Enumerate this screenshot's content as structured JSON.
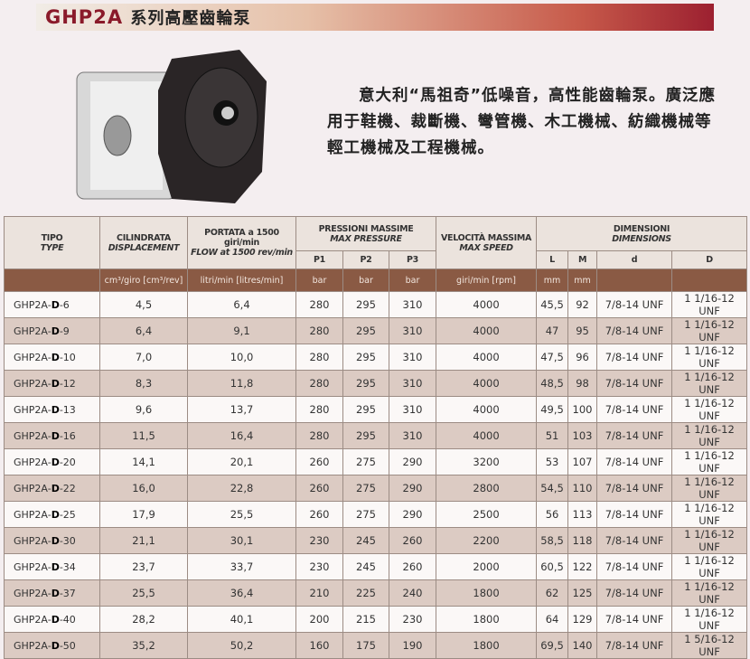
{
  "header": {
    "model": "GHP2A",
    "title_cn": "系列高壓齒輪泵"
  },
  "description": "意大利“馬祖奇”低噪音，高性能齒輪泵。廣泛應用于鞋機、裁斷機、彎管機、木工機械、紡織機械等輕工機械及工程機械。",
  "table": {
    "headers": {
      "type": [
        "TIPO",
        "TYPE"
      ],
      "displacement": [
        "CILINDRATA",
        "DISPLACEMENT"
      ],
      "flow": [
        "PORTATA a 1500 giri/min",
        "FLOW at 1500 rev/min"
      ],
      "pressure": [
        "PRESSIONI MASSIME",
        "MAX PRESSURE"
      ],
      "p": [
        "P1",
        "P2",
        "P3"
      ],
      "speed": [
        "VELOCITÀ MASSIMA",
        "MAX SPEED"
      ],
      "dimensions": [
        "DIMENSIONI",
        "DIMENSIONS"
      ],
      "dim_cols": [
        "L",
        "M",
        "d",
        "D"
      ]
    },
    "units": [
      "",
      "cm³/giro [cm³/rev]",
      "litri/min [litres/min]",
      "bar",
      "bar",
      "bar",
      "giri/min [rpm]",
      "mm",
      "mm",
      "",
      ""
    ],
    "rows": [
      {
        "prefix": "GHP2A-",
        "mid": "D",
        "suffix": "-6",
        "c": [
          "4,5",
          "6,4",
          "280",
          "295",
          "310",
          "4000",
          "45,5",
          "92",
          "7/8-14 UNF",
          "1 1/16-12 UNF"
        ]
      },
      {
        "prefix": "GHP2A-",
        "mid": "D",
        "suffix": "-9",
        "c": [
          "6,4",
          "9,1",
          "280",
          "295",
          "310",
          "4000",
          "47",
          "95",
          "7/8-14 UNF",
          "1 1/16-12 UNF"
        ]
      },
      {
        "prefix": "GHP2A-",
        "mid": "D",
        "suffix": "-10",
        "c": [
          "7,0",
          "10,0",
          "280",
          "295",
          "310",
          "4000",
          "47,5",
          "96",
          "7/8-14 UNF",
          "1 1/16-12 UNF"
        ]
      },
      {
        "prefix": "GHP2A-",
        "mid": "D",
        "suffix": "-12",
        "c": [
          "8,3",
          "11,8",
          "280",
          "295",
          "310",
          "4000",
          "48,5",
          "98",
          "7/8-14 UNF",
          "1 1/16-12 UNF"
        ]
      },
      {
        "prefix": "GHP2A-",
        "mid": "D",
        "suffix": "-13",
        "c": [
          "9,6",
          "13,7",
          "280",
          "295",
          "310",
          "4000",
          "49,5",
          "100",
          "7/8-14 UNF",
          "1 1/16-12 UNF"
        ]
      },
      {
        "prefix": "GHP2A-",
        "mid": "D",
        "suffix": "-16",
        "c": [
          "11,5",
          "16,4",
          "280",
          "295",
          "310",
          "4000",
          "51",
          "103",
          "7/8-14 UNF",
          "1 1/16-12 UNF"
        ]
      },
      {
        "prefix": "GHP2A-",
        "mid": "D",
        "suffix": "-20",
        "c": [
          "14,1",
          "20,1",
          "260",
          "275",
          "290",
          "3200",
          "53",
          "107",
          "7/8-14 UNF",
          "1 1/16-12 UNF"
        ]
      },
      {
        "prefix": "GHP2A-",
        "mid": "D",
        "suffix": "-22",
        "c": [
          "16,0",
          "22,8",
          "260",
          "275",
          "290",
          "2800",
          "54,5",
          "110",
          "7/8-14 UNF",
          "1 1/16-12 UNF"
        ]
      },
      {
        "prefix": "GHP2A-",
        "mid": "D",
        "suffix": "-25",
        "c": [
          "17,9",
          "25,5",
          "260",
          "275",
          "290",
          "2500",
          "56",
          "113",
          "7/8-14 UNF",
          "1 1/16-12 UNF"
        ]
      },
      {
        "prefix": "GHP2A-",
        "mid": "D",
        "suffix": "-30",
        "c": [
          "21,1",
          "30,1",
          "230",
          "245",
          "260",
          "2200",
          "58,5",
          "118",
          "7/8-14 UNF",
          "1 1/16-12 UNF"
        ]
      },
      {
        "prefix": "GHP2A-",
        "mid": "D",
        "suffix": "-34",
        "c": [
          "23,7",
          "33,7",
          "230",
          "245",
          "260",
          "2000",
          "60,5",
          "122",
          "7/8-14 UNF",
          "1 1/16-12 UNF"
        ]
      },
      {
        "prefix": "GHP2A-",
        "mid": "D",
        "suffix": "-37",
        "c": [
          "25,5",
          "36,4",
          "210",
          "225",
          "240",
          "1800",
          "62",
          "125",
          "7/8-14 UNF",
          "1 1/16-12 UNF"
        ]
      },
      {
        "prefix": "GHP2A-",
        "mid": "D",
        "suffix": "-40",
        "c": [
          "28,2",
          "40,1",
          "200",
          "215",
          "230",
          "1800",
          "64",
          "129",
          "7/8-14 UNF",
          "1 1/16-12 UNF"
        ]
      },
      {
        "prefix": "GHP2A-",
        "mid": "D",
        "suffix": "-50",
        "c": [
          "35,2",
          "50,2",
          "160",
          "175",
          "190",
          "1800",
          "69,5",
          "140",
          "7/8-14 UNF",
          "1 5/16-12 UNF"
        ]
      }
    ]
  }
}
